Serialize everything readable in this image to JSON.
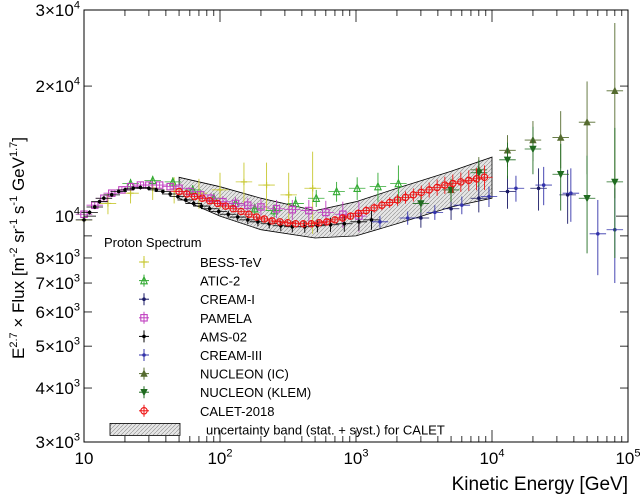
{
  "chart_data": {
    "type": "scatter",
    "title": "",
    "xlabel": "Kinetic Energy [GeV]",
    "ylabel": {
      "base": "E",
      "exp": "2.7",
      "rest": " × Flux [m",
      "e1": "-2",
      "sr": " sr",
      "e2": "-1",
      "s": " s",
      "e3": "-1",
      "gev": " GeV",
      "e4": "1.7",
      "close": "]"
    },
    "xscale": "log",
    "yscale": "log",
    "xlim": [
      10,
      100000
    ],
    "ylim": [
      3000,
      30000
    ],
    "legend_title": "Proton Spectrum",
    "legend_position": "bottom-left",
    "x_ticks": [
      {
        "value": 10,
        "base": "10",
        "exp": ""
      },
      {
        "value": 100,
        "base": "10",
        "exp": "2"
      },
      {
        "value": 1000,
        "base": "10",
        "exp": "3"
      },
      {
        "value": 10000,
        "base": "10",
        "exp": "4"
      },
      {
        "value": 100000,
        "base": "10",
        "exp": "5"
      }
    ],
    "y_ticks": [
      {
        "value": 30000,
        "base": "3×10",
        "exp": "4"
      },
      {
        "value": 20000,
        "base": "2×10",
        "exp": "4"
      },
      {
        "value": 10000,
        "base": "10",
        "exp": "4"
      },
      {
        "value": 8000,
        "base": "8×10",
        "exp": "3"
      },
      {
        "value": 7000,
        "base": "7×10",
        "exp": "3"
      },
      {
        "value": 6000,
        "base": "6×10",
        "exp": "3"
      },
      {
        "value": 5000,
        "base": "5×10",
        "exp": "3"
      },
      {
        "value": 4000,
        "base": "4×10",
        "exp": "3"
      },
      {
        "value": 3000,
        "base": "3×10",
        "exp": "3"
      }
    ],
    "band": {
      "name": "uncertainty band (stat. + syst.) for CALET",
      "x": [
        50,
        100,
        200,
        500,
        1000,
        2000,
        5000,
        10000
      ],
      "low": [
        11000,
        10000,
        9300,
        8900,
        9000,
        9600,
        10500,
        11000
      ],
      "high": [
        12300,
        11700,
        11000,
        10300,
        10800,
        11600,
        12700,
        13700
      ]
    },
    "series": [
      {
        "name": "BESS-TeV",
        "color": "#c8c832",
        "marker": "plus",
        "x": [
          10,
          15,
          22,
          32,
          46,
          70,
          100,
          150,
          220,
          320,
          480
        ],
        "y": [
          9800,
          10700,
          11300,
          11600,
          11500,
          11300,
          11500,
          12000,
          11800,
          11200,
          11600
        ],
        "err": [
          500,
          600,
          600,
          700,
          800,
          900,
          1100,
          1300,
          1500,
          1400,
          2500
        ]
      },
      {
        "name": "ATIC-2",
        "color": "#33aa33",
        "marker": "triangle-open",
        "x": [
          22,
          32,
          45,
          63,
          90,
          130,
          180,
          250,
          360,
          510,
          720,
          1020,
          1450,
          2050
        ],
        "y": [
          11900,
          12100,
          12000,
          11500,
          11000,
          10700,
          10400,
          10300,
          10700,
          11000,
          11400,
          11600,
          11700,
          11900
        ],
        "err": [
          300,
          300,
          300,
          300,
          300,
          300,
          300,
          350,
          400,
          500,
          600,
          700,
          900,
          1200
        ]
      },
      {
        "name": "CREAM-I",
        "color": "#1a1a66",
        "marker": "dot",
        "x": [
          3000,
          5000,
          8000,
          13000,
          22000,
          36000
        ],
        "y": [
          9900,
          10400,
          11000,
          11400,
          11600,
          11200
        ],
        "err": [
          500,
          600,
          800,
          1000,
          1300,
          1600
        ]
      },
      {
        "name": "PAMELA",
        "color": "#c040c0",
        "marker": "square-open",
        "x": [
          10,
          12,
          14,
          16,
          19,
          22,
          26,
          30,
          36,
          43,
          50,
          60,
          72,
          86,
          105,
          130,
          160,
          200,
          260,
          340,
          450,
          600,
          800,
          1050
        ],
        "y": [
          10100,
          10600,
          11000,
          11300,
          11500,
          11700,
          11800,
          11800,
          11800,
          11700,
          11600,
          11400,
          11200,
          11000,
          10800,
          10700,
          10600,
          10500,
          10400,
          10350,
          10300,
          10200,
          10100,
          10000
        ],
        "err": [
          150,
          150,
          150,
          160,
          170,
          180,
          190,
          200,
          210,
          220,
          240,
          260,
          280,
          300,
          330,
          360,
          400,
          450,
          500,
          550,
          600,
          650,
          700,
          800
        ]
      },
      {
        "name": "AMS-02",
        "color": "#000000",
        "marker": "dot",
        "x": [
          10,
          11,
          12,
          13,
          14,
          16,
          18,
          20,
          23,
          26,
          30,
          34,
          38,
          43,
          49,
          56,
          64,
          73,
          84,
          98,
          115,
          135,
          160,
          190,
          230,
          280,
          340,
          420,
          520,
          650,
          820,
          1050,
          1300
        ],
        "y": [
          9800,
          10200,
          10500,
          10800,
          11000,
          11200,
          11400,
          11500,
          11600,
          11650,
          11600,
          11500,
          11400,
          11250,
          11100,
          10900,
          10700,
          10550,
          10400,
          10250,
          10100,
          9950,
          9800,
          9700,
          9600,
          9500,
          9450,
          9450,
          9500,
          9550,
          9600,
          9700,
          9800
        ],
        "err": [
          120,
          120,
          120,
          120,
          120,
          120,
          120,
          120,
          130,
          130,
          130,
          130,
          130,
          140,
          140,
          150,
          150,
          160,
          170,
          180,
          190,
          200,
          210,
          220,
          240,
          260,
          280,
          300,
          330,
          360,
          400,
          450,
          500
        ]
      },
      {
        "name": "CREAM-III",
        "color": "#3333aa",
        "marker": "dot",
        "x": [
          1500,
          2400,
          3800,
          6000,
          9500,
          15000,
          24000,
          38000,
          60000,
          80000
        ],
        "y": [
          9700,
          9900,
          10200,
          10600,
          11100,
          11600,
          11800,
          11300,
          9100,
          9300
        ],
        "err": [
          300,
          350,
          400,
          500,
          600,
          800,
          1200,
          1600,
          1800,
          2300
        ]
      },
      {
        "name": "NUCLEON (IC)",
        "color": "#556b2f",
        "marker": "triangle-up",
        "x": [
          5000,
          8000,
          13000,
          20000,
          32000,
          50000,
          80000
        ],
        "y": [
          11500,
          12800,
          14200,
          15000,
          15200,
          16500,
          19500
        ],
        "err": [
          700,
          900,
          1200,
          1600,
          2300,
          4000,
          8500
        ]
      },
      {
        "name": "NUCLEON (KLEM)",
        "color": "#1f6b1f",
        "marker": "triangle-down",
        "x": [
          3000,
          5000,
          8000,
          13000,
          20000,
          32000,
          50000,
          80000
        ],
        "y": [
          10700,
          11500,
          12600,
          13500,
          14300,
          12500,
          11000,
          12000
        ],
        "err": [
          500,
          700,
          900,
          1300,
          1800,
          2200,
          2800,
          4000
        ]
      },
      {
        "name": "CALET-2018",
        "color": "#ee1111",
        "marker": "circle-open",
        "x": [
          50,
          57,
          65,
          74,
          84,
          96,
          110,
          125,
          143,
          163,
          186,
          212,
          242,
          276,
          315,
          360,
          410,
          470,
          535,
          610,
          700,
          800,
          910,
          1040,
          1190,
          1360,
          1550,
          1770,
          2020,
          2310,
          2640,
          3020,
          3450,
          3950,
          4500,
          5150,
          5900,
          6750,
          7700,
          8800
        ],
        "y": [
          11400,
          11250,
          11100,
          11000,
          10850,
          10700,
          10550,
          10400,
          10250,
          10100,
          9950,
          9850,
          9750,
          9700,
          9650,
          9600,
          9600,
          9600,
          9650,
          9700,
          9800,
          9900,
          10000,
          10150,
          10300,
          10450,
          10600,
          10750,
          10900,
          11050,
          11200,
          11350,
          11500,
          11650,
          11800,
          11900,
          12000,
          12100,
          12200,
          12300
        ],
        "err": [
          110,
          110,
          110,
          110,
          110,
          110,
          110,
          110,
          110,
          115,
          115,
          120,
          120,
          125,
          130,
          135,
          140,
          150,
          160,
          170,
          180,
          190,
          200,
          220,
          240,
          260,
          280,
          300,
          330,
          360,
          390,
          420,
          460,
          500,
          540,
          580,
          620,
          660,
          720,
          800
        ]
      }
    ]
  }
}
